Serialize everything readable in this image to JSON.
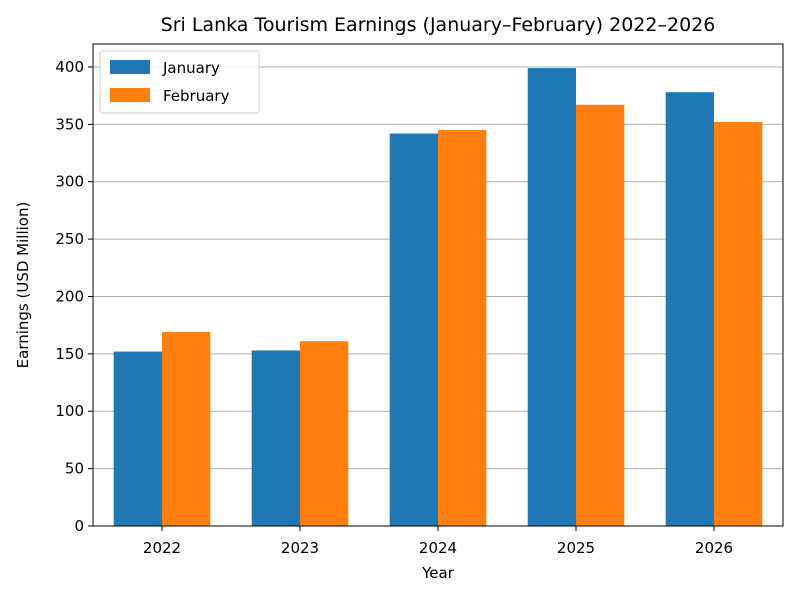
{
  "chart_data": {
    "type": "bar",
    "title": "Sri Lanka Tourism Earnings (January–February) 2022–2026",
    "xlabel": "Year",
    "ylabel": "Earnings (USD Million)",
    "categories": [
      "2022",
      "2023",
      "2024",
      "2025",
      "2026"
    ],
    "series": [
      {
        "name": "January",
        "values": [
          152,
          153,
          342,
          399,
          378
        ],
        "color": "#1f77b4"
      },
      {
        "name": "February",
        "values": [
          169,
          161,
          345,
          367,
          352
        ],
        "color": "#ff7f0e"
      }
    ],
    "ylim": [
      0,
      420
    ],
    "yticks": [
      0,
      50,
      100,
      150,
      200,
      250,
      300,
      350,
      400
    ],
    "grid": "horizontal",
    "legend": "upper-left"
  }
}
